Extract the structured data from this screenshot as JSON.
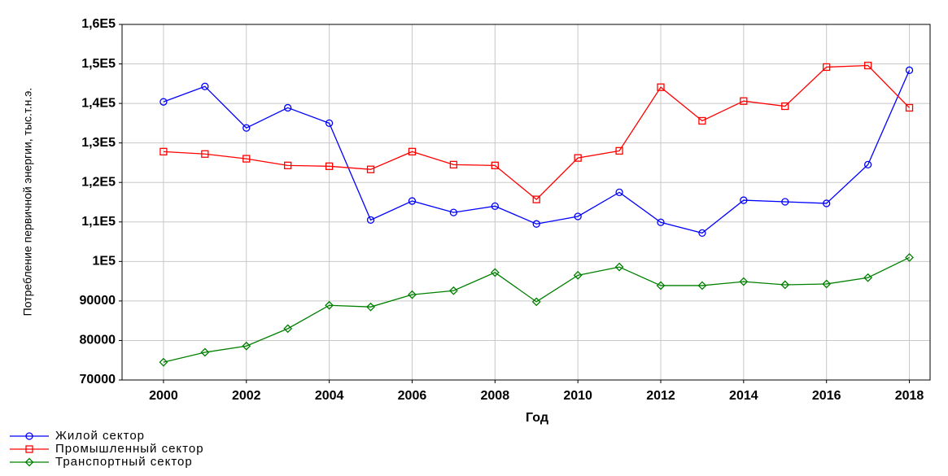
{
  "chart_data": {
    "type": "line",
    "y_label": "Потребление первичной энергии, тыс.т.н.э.",
    "x_label": "Год",
    "x": [
      2000,
      2001,
      2002,
      2003,
      2004,
      2005,
      2006,
      2007,
      2008,
      2009,
      2010,
      2011,
      2012,
      2013,
      2014,
      2015,
      2016,
      2017,
      2018
    ],
    "series": [
      {
        "name": "Жилой сектор",
        "color": "#0000ff",
        "marker": "circle",
        "values": [
          140400,
          144300,
          133800,
          138900,
          135000,
          110500,
          115300,
          112400,
          114000,
          109500,
          111400,
          117500,
          109900,
          107200,
          115500,
          115100,
          114700,
          124500,
          148400
        ]
      },
      {
        "name": "Промышленный сектор",
        "color": "#ff0000",
        "marker": "square",
        "values": [
          127800,
          127200,
          126000,
          124300,
          124100,
          123300,
          127800,
          124500,
          124300,
          115700,
          126200,
          128000,
          144100,
          135600,
          140600,
          139300,
          149200,
          149600,
          138900
        ]
      },
      {
        "name": "Транспортный сектор",
        "color": "#008000",
        "marker": "diamond",
        "values": [
          74500,
          77000,
          78600,
          83000,
          88900,
          88500,
          91600,
          92600,
          97200,
          89800,
          96500,
          98600,
          93900,
          93900,
          94900,
          94100,
          94300,
          95900,
          101000
        ]
      }
    ],
    "xlim": [
      1999,
      2018.5
    ],
    "xticks": [
      2000,
      2002,
      2004,
      2006,
      2008,
      2010,
      2012,
      2014,
      2016,
      2018
    ],
    "ylim": [
      70000,
      160000
    ],
    "yticks": [
      70000,
      80000,
      90000,
      {
        "value": 100000,
        "label": "1E5"
      },
      {
        "value": 110000,
        "label": "1,1E5"
      },
      {
        "value": 120000,
        "label": "1,2E5"
      },
      {
        "value": 130000,
        "label": "1,3E5"
      },
      {
        "value": 140000,
        "label": "1,4E5"
      },
      {
        "value": 150000,
        "label": "1,5E5"
      },
      {
        "value": 160000,
        "label": "1,6E5"
      }
    ],
    "grid": true,
    "legend": "bottom-left"
  }
}
